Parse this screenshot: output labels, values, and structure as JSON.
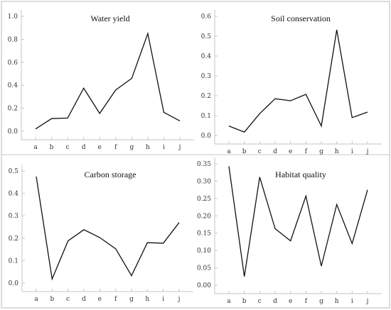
{
  "chart_data": [
    {
      "type": "line",
      "title": "Water yield",
      "categories": [
        "a",
        "b",
        "c",
        "d",
        "e",
        "f",
        "g",
        "h",
        "i",
        "j"
      ],
      "values": [
        0.02,
        0.11,
        0.115,
        0.375,
        0.155,
        0.36,
        0.46,
        0.85,
        0.165,
        0.09
      ],
      "yticks": [
        "0.0",
        "0.2",
        "0.4",
        "0.6",
        "0.8",
        "1.0"
      ],
      "ylim": [
        0,
        1.0
      ]
    },
    {
      "type": "line",
      "title": "Soil conservation",
      "categories": [
        "a",
        "b",
        "c",
        "d",
        "e",
        "f",
        "g",
        "h",
        "i",
        "j"
      ],
      "values": [
        0.048,
        0.017,
        0.11,
        0.185,
        0.175,
        0.207,
        0.048,
        0.532,
        0.09,
        0.118
      ],
      "yticks": [
        "0.0",
        "0.1",
        "0.2",
        "0.3",
        "0.4",
        "0.5",
        "0.6"
      ],
      "ylim": [
        0,
        0.6
      ]
    },
    {
      "type": "line",
      "title": "Carbon storage",
      "categories": [
        "a",
        "b",
        "c",
        "d",
        "e",
        "f",
        "g",
        "h",
        "i",
        "j"
      ],
      "values": [
        0.475,
        0.018,
        0.188,
        0.238,
        0.203,
        0.153,
        0.033,
        0.18,
        0.178,
        0.27
      ],
      "yticks": [
        "0.0",
        "0.1",
        "0.2",
        "0.3",
        "0.4",
        "0.5"
      ],
      "ylim": [
        0,
        0.5
      ]
    },
    {
      "type": "line",
      "title": "Habitat quality",
      "categories": [
        "a",
        "b",
        "c",
        "d",
        "e",
        "f",
        "g",
        "h",
        "i",
        "j"
      ],
      "values": [
        0.343,
        0.025,
        0.312,
        0.163,
        0.128,
        0.257,
        0.055,
        0.233,
        0.12,
        0.275
      ],
      "yticks": [
        "0.00",
        "0.05",
        "0.10",
        "0.15",
        "0.20",
        "0.25",
        "0.30",
        "0.35"
      ],
      "ylim": [
        0,
        0.35
      ]
    }
  ]
}
